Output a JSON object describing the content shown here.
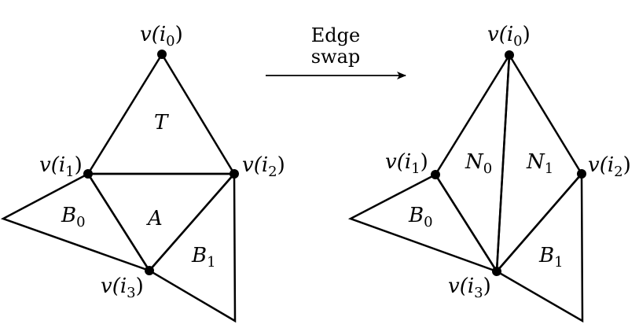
{
  "arrow_label": {
    "line1": "Edge",
    "line2": "swap"
  },
  "left": {
    "vertices": {
      "i0": {
        "name": "v(",
        "index": "i",
        "sub": "0",
        "close": ")"
      },
      "i1": {
        "name": "v(",
        "index": "i",
        "sub": "1",
        "close": ")"
      },
      "i2": {
        "name": "v(",
        "index": "i",
        "sub": "2",
        "close": ")"
      },
      "i3": {
        "name": "v(",
        "index": "i",
        "sub": "3",
        "close": ")"
      }
    },
    "faces": {
      "T": {
        "letter": "T",
        "sub": ""
      },
      "A": {
        "letter": "A",
        "sub": ""
      },
      "B0": {
        "letter": "B",
        "sub": "0"
      },
      "B1": {
        "letter": "B",
        "sub": "1"
      }
    }
  },
  "right": {
    "vertices": {
      "i0": {
        "name": "v(",
        "index": "i",
        "sub": "0",
        "close": ")"
      },
      "i1": {
        "name": "v(",
        "index": "i",
        "sub": "1",
        "close": ")"
      },
      "i2": {
        "name": "v(",
        "index": "i",
        "sub": "2",
        "close": ")"
      },
      "i3": {
        "name": "v(",
        "index": "i",
        "sub": "3",
        "close": ")"
      }
    },
    "faces": {
      "N0": {
        "letter": "N",
        "sub": "0"
      },
      "N1": {
        "letter": "N",
        "sub": "1"
      },
      "B0": {
        "letter": "B",
        "sub": "0"
      },
      "B1": {
        "letter": "B",
        "sub": "1"
      }
    }
  }
}
